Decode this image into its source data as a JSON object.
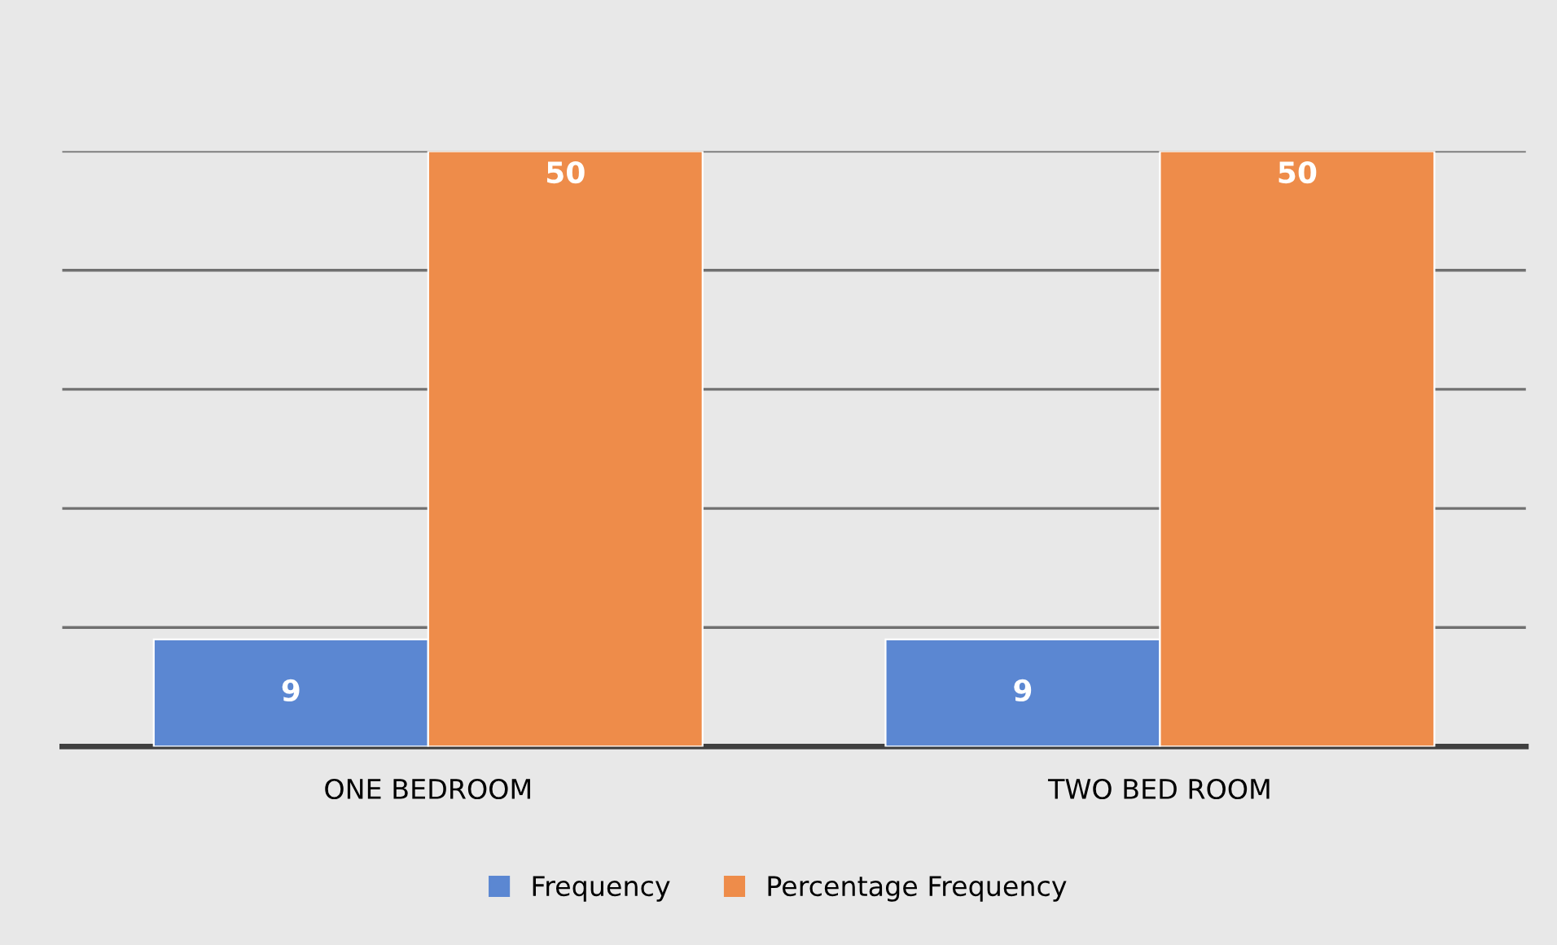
{
  "chart_data": {
    "type": "bar",
    "categories": [
      "ONE BEDROOM",
      "TWO BED ROOM"
    ],
    "series": [
      {
        "name": "Frequency",
        "color": "#5b87d2",
        "values": [
          9,
          9
        ]
      },
      {
        "name": "Percentage Frequency",
        "color": "#ee8c4a",
        "values": [
          50,
          50
        ]
      }
    ],
    "ylim": [
      0,
      50
    ],
    "yticks": [
      {
        "value": 0,
        "label": null
      },
      {
        "value": 10,
        "label": null
      },
      {
        "value": 20,
        "label": null
      },
      {
        "value": 30,
        "label": null
      },
      {
        "value": 40,
        "label": null
      },
      {
        "value": 50,
        "label": null
      }
    ],
    "tick_labels": "x",
    "grid": "y",
    "data_labels": true,
    "legend": "bottom"
  }
}
